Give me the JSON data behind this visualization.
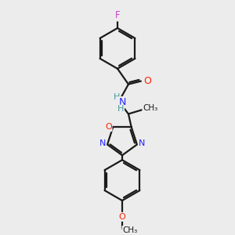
{
  "background_color": "#ececec",
  "bond_color": "#1a1a1a",
  "atom_colors": {
    "F": "#cc44cc",
    "O": "#ff2200",
    "N": "#2222ff",
    "C": "#1a1a1a",
    "H": "#4a9898"
  },
  "font_size": 8.0
}
